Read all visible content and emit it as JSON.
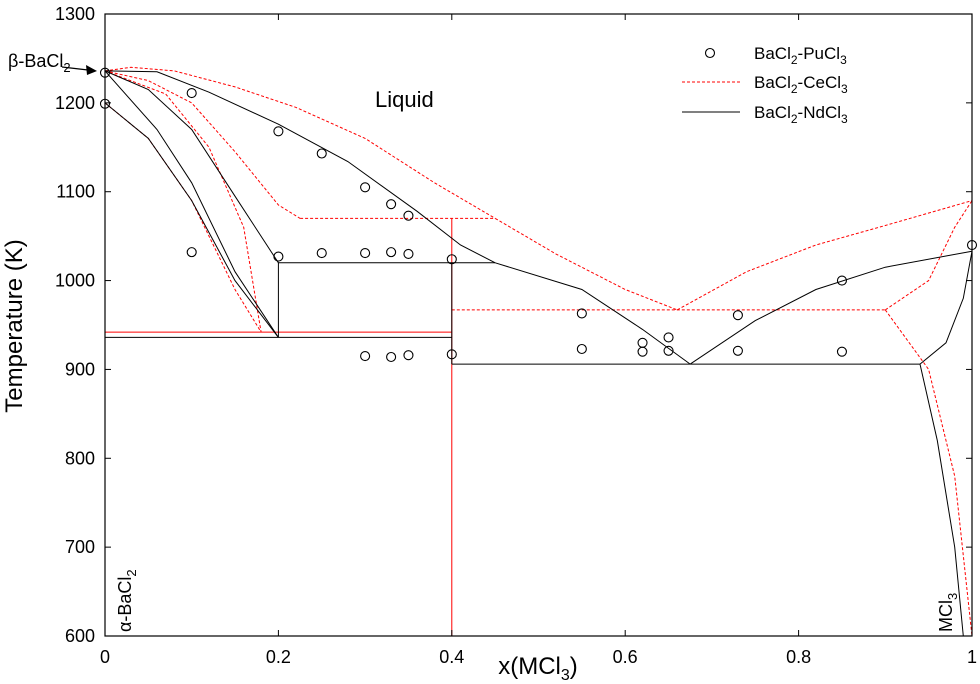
{
  "chart_data": {
    "type": "line",
    "xlabel": "x(MCl",
    "xlabel_sub": "3",
    "xlabel_close": ")",
    "ylabel": "Temperature (K)",
    "xlim": [
      0,
      1
    ],
    "ylim": [
      600,
      1300
    ],
    "x_ticks": [
      0,
      0.2,
      0.4,
      0.6,
      0.8,
      1
    ],
    "x_tick_labels": [
      "0",
      "0.2",
      "0.4",
      "0.6",
      "0.8",
      "1"
    ],
    "y_ticks": [
      600,
      700,
      800,
      900,
      1000,
      1100,
      1200,
      1300
    ],
    "y_tick_labels": [
      "600",
      "700",
      "800",
      "900",
      "1000",
      "1100",
      "1200",
      "1300"
    ],
    "grid": false,
    "legend_position": "top-right",
    "legend": [
      {
        "key": "pu",
        "label": "BaCl",
        "sub1": "2",
        "mid": "-PuCl",
        "sub2": "3"
      },
      {
        "key": "ce",
        "label": "BaCl",
        "sub1": "2",
        "mid": "-CeCl",
        "sub2": "3"
      },
      {
        "key": "nd",
        "label": "BaCl",
        "sub1": "2",
        "mid": "-NdCl",
        "sub2": "3"
      }
    ],
    "annotations": {
      "liquid": "Liquid",
      "beta_main": "β-BaCl",
      "beta_sub": "2",
      "alpha_main": "α-BaCl",
      "alpha_sub": "2",
      "mcl_main": "MCl",
      "mcl_sub": "3"
    },
    "colors": {
      "pu": "#000000",
      "ce": "#ff0000",
      "nd": "#000000"
    },
    "series": [
      {
        "key": "pu",
        "style": "markers",
        "points": [
          [
            0,
            1234
          ],
          [
            0,
            1199
          ],
          [
            0.1,
            1211
          ],
          [
            0.1,
            1032
          ],
          [
            0.2,
            1168
          ],
          [
            0.2,
            1027
          ],
          [
            0.25,
            1143
          ],
          [
            0.25,
            1031
          ],
          [
            0.3,
            1105
          ],
          [
            0.3,
            1031
          ],
          [
            0.3,
            915
          ],
          [
            0.33,
            1086
          ],
          [
            0.33,
            1032
          ],
          [
            0.33,
            914
          ],
          [
            0.35,
            1073
          ],
          [
            0.35,
            1030
          ],
          [
            0.35,
            916
          ],
          [
            0.4,
            1024
          ],
          [
            0.4,
            917
          ],
          [
            0.55,
            963
          ],
          [
            0.55,
            923
          ],
          [
            0.62,
            930
          ],
          [
            0.62,
            920
          ],
          [
            0.65,
            936
          ],
          [
            0.65,
            921
          ],
          [
            0.73,
            961
          ],
          [
            0.73,
            921
          ],
          [
            0.85,
            1000
          ],
          [
            0.85,
            920
          ],
          [
            1,
            1040
          ]
        ]
      },
      {
        "key": "ce",
        "style": "dashed",
        "lines": [
          [
            [
              0,
              1236
            ],
            [
              0.03,
              1240
            ],
            [
              0.08,
              1236
            ],
            [
              0.15,
              1218
            ],
            [
              0.22,
              1195
            ],
            [
              0.3,
              1160
            ],
            [
              0.38,
              1110
            ],
            [
              0.45,
              1070
            ]
          ],
          [
            [
              0,
              1236
            ],
            [
              0.05,
              1225
            ],
            [
              0.1,
              1200
            ],
            [
              0.15,
              1145
            ],
            [
              0.2,
              1085
            ],
            [
              0.225,
              1070
            ]
          ],
          [
            [
              0.225,
              1070
            ],
            [
              0.45,
              1070
            ]
          ],
          [
            [
              0,
              1236
            ],
            [
              0.07,
              1210
            ],
            [
              0.12,
              1150
            ],
            [
              0.16,
              1060
            ],
            [
              0.18,
              942
            ]
          ],
          [
            [
              0,
              1200
            ],
            [
              0.05,
              1160
            ],
            [
              0.1,
              1090
            ],
            [
              0.15,
              990
            ],
            [
              0.18,
              942
            ]
          ],
          [
            [
              0.45,
              1070
            ],
            [
              0.52,
              1030
            ],
            [
              0.6,
              990
            ],
            [
              0.66,
              967
            ]
          ],
          [
            [
              0.66,
              967
            ],
            [
              0.74,
              1010
            ],
            [
              0.82,
              1040
            ],
            [
              0.9,
              1062
            ],
            [
              1,
              1090
            ]
          ],
          [
            [
              0.4,
              967
            ],
            [
              0.9,
              967
            ]
          ],
          [
            [
              0.9,
              967
            ],
            [
              0.95,
              1000
            ],
            [
              0.98,
              1060
            ],
            [
              1,
              1090
            ]
          ],
          [
            [
              0.9,
              967
            ],
            [
              0.95,
              900
            ],
            [
              0.98,
              780
            ],
            [
              1,
              600
            ]
          ]
        ]
      },
      {
        "key": "ce",
        "style": "solid",
        "lines": [
          [
            [
              0,
              942
            ],
            [
              0.4,
              942
            ]
          ],
          [
            [
              0.4,
              1070
            ],
            [
              0.4,
              600
            ]
          ]
        ]
      },
      {
        "key": "nd",
        "style": "solid",
        "lines": [
          [
            [
              0,
              1236
            ],
            [
              0.06,
              1235
            ],
            [
              0.12,
              1212
            ],
            [
              0.2,
              1176
            ],
            [
              0.28,
              1134
            ],
            [
              0.36,
              1078
            ],
            [
              0.41,
              1040
            ],
            [
              0.45,
              1020
            ]
          ],
          [
            [
              0,
              1236
            ],
            [
              0.05,
              1215
            ],
            [
              0.1,
              1170
            ],
            [
              0.15,
              1095
            ],
            [
              0.2,
              1020
            ]
          ],
          [
            [
              0,
              1236
            ],
            [
              0.06,
              1170
            ],
            [
              0.1,
              1110
            ],
            [
              0.15,
              1010
            ],
            [
              0.2,
              936
            ]
          ],
          [
            [
              0,
              1200
            ],
            [
              0.05,
              1160
            ],
            [
              0.1,
              1090
            ],
            [
              0.15,
              1000
            ],
            [
              0.2,
              936
            ]
          ],
          [
            [
              0.2,
              1020
            ],
            [
              0.2,
              936
            ]
          ],
          [
            [
              0.2,
              1020
            ],
            [
              0.45,
              1020
            ]
          ],
          [
            [
              0,
              936
            ],
            [
              0.4,
              936
            ]
          ],
          [
            [
              0.4,
              1020
            ],
            [
              0.4,
              906
            ]
          ],
          [
            [
              0.4,
              906
            ],
            [
              0.94,
              906
            ]
          ],
          [
            [
              0.45,
              1020
            ],
            [
              0.55,
              990
            ],
            [
              0.62,
              945
            ],
            [
              0.675,
              906
            ]
          ],
          [
            [
              0.675,
              906
            ],
            [
              0.75,
              955
            ],
            [
              0.82,
              990
            ],
            [
              0.9,
              1015
            ],
            [
              1,
              1033
            ]
          ],
          [
            [
              0.94,
              906
            ],
            [
              0.97,
              930
            ],
            [
              0.99,
              980
            ],
            [
              1,
              1033
            ]
          ],
          [
            [
              0.94,
              906
            ],
            [
              0.96,
              820
            ],
            [
              0.98,
              700
            ],
            [
              0.99,
              600
            ]
          ]
        ]
      }
    ]
  }
}
